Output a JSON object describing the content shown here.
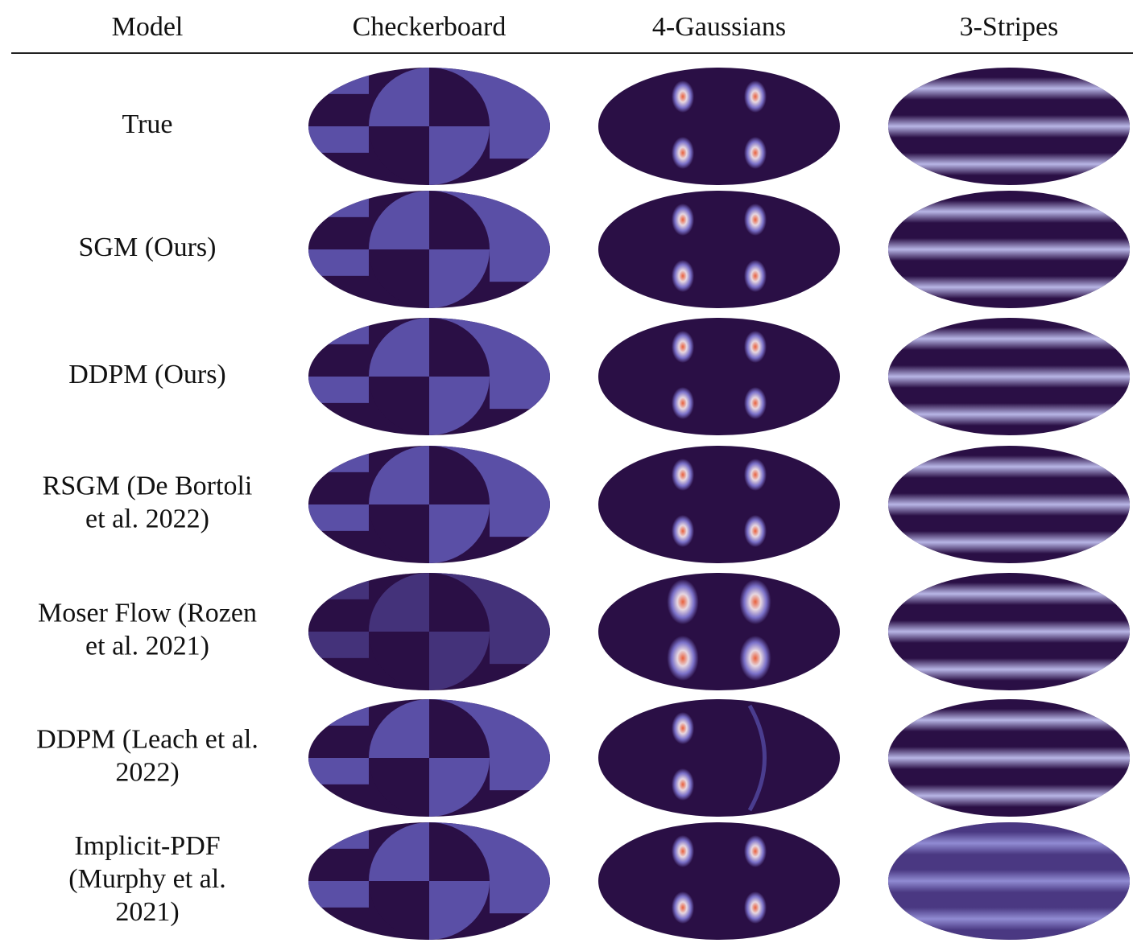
{
  "header": {
    "columns": [
      "Model",
      "Checkerboard",
      "4-Gaussians",
      "3-Stripes"
    ]
  },
  "rows": [
    {
      "label": [
        "True"
      ]
    },
    {
      "label": [
        "SGM (Ours)"
      ]
    },
    {
      "label": [
        "DDPM (Ours)"
      ]
    },
    {
      "label": [
        "RSGM (De Bortoli",
        "et al. 2022)"
      ]
    },
    {
      "label": [
        "Moser Flow (Rozen",
        "et al. 2021)"
      ]
    },
    {
      "label": [
        "DDPM (Leach et al.",
        "2022)"
      ]
    },
    {
      "label": [
        "Implicit-PDF",
        "(Murphy et al.",
        "2021)"
      ]
    }
  ]
}
